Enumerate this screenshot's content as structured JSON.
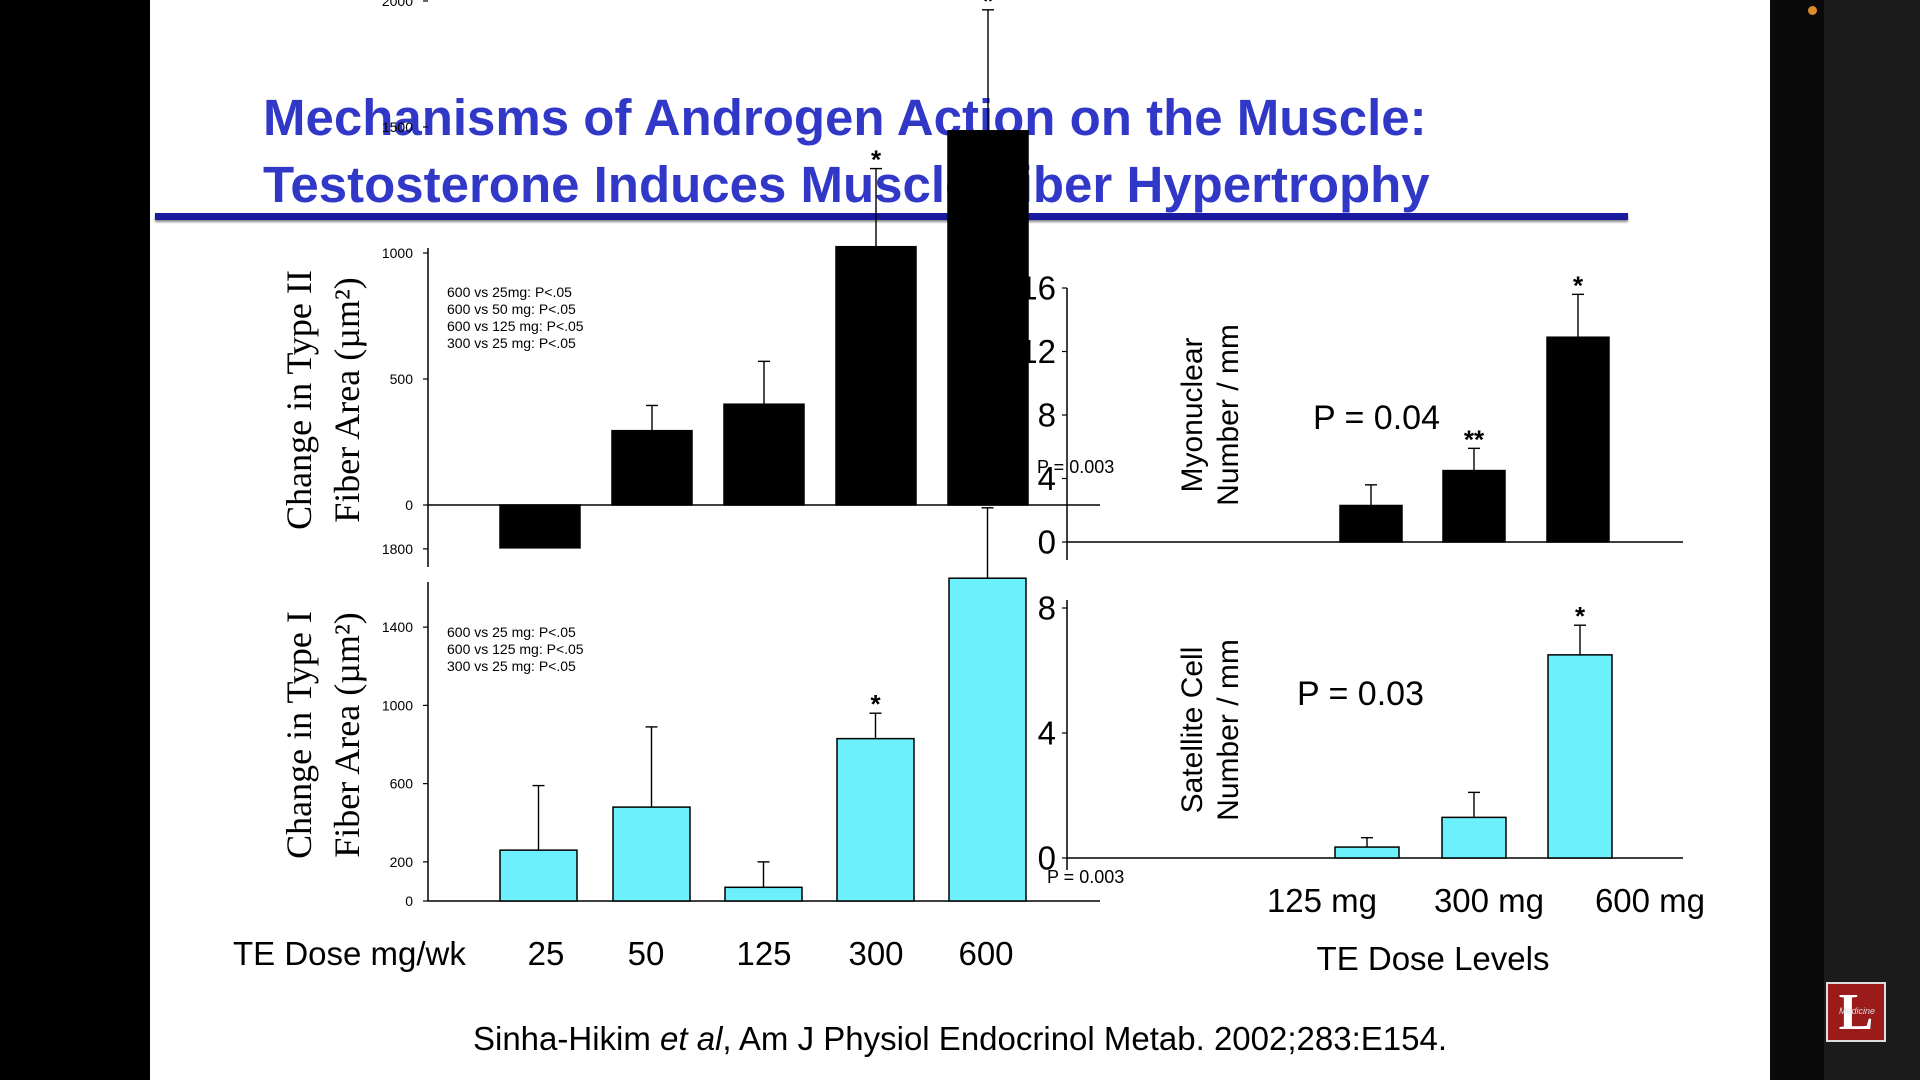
{
  "slide": {
    "title_line1": "Mechanisms of Androgen Action on the Muscle:",
    "title_line2": "Testosterone Induces Muscle Fiber Hypertrophy",
    "citation_author": "Sinha-Hikim ",
    "citation_etal": "et al",
    "citation_rest": ", Am J Physiol Endocrinol Metab. 2002;283:E154.",
    "dose_axis_label": "TE Dose mg/wk",
    "logo_letter": "L",
    "logo_text": "Medicine"
  },
  "colors": {
    "title": "#3138c8",
    "black_bars": "#000000",
    "cyan_bars": "#6cf0fc",
    "rule": "#1a1aa0"
  },
  "chart_data": [
    {
      "id": "type2",
      "type": "bar",
      "ylabel_line1": "Change in Type II",
      "ylabel_line2": "Fiber Area (µm²)",
      "categories": [
        "25",
        "50",
        "125",
        "300",
        "600"
      ],
      "values": [
        -170,
        295,
        400,
        1025,
        1485
      ],
      "errors": [
        0,
        100,
        170,
        310,
        480
      ],
      "stars": [
        "",
        "",
        "",
        "*",
        "*"
      ],
      "yticks": [
        "2000",
        "1500",
        "1000",
        "500",
        "0"
      ],
      "ylim": [
        -500,
        2000
      ],
      "annotations": [
        "600 vs 25mg: P<.05",
        "600 vs 50 mg: P<.05",
        "600 vs 125 mg: P<.05",
        "300 vs 25 mg: P<.05"
      ],
      "p_value": "P = 0.003",
      "bar_color": "#000000"
    },
    {
      "id": "type1",
      "type": "bar",
      "ylabel_line1": "Change in Type I",
      "ylabel_line2": "Fiber Area (µm²)",
      "categories": [
        "25",
        "50",
        "125",
        "300",
        "600"
      ],
      "values": [
        260,
        480,
        70,
        830,
        1650
      ],
      "errors": [
        330,
        410,
        130,
        130,
        360
      ],
      "stars": [
        "",
        "",
        "",
        "*",
        "*"
      ],
      "yticks": [
        "1800",
        "1400",
        "1000",
        "600",
        "200",
        "0"
      ],
      "ylim": [
        0,
        2000
      ],
      "annotations": [
        "600 vs 25 mg: P<.05",
        "600 vs 125 mg: P<.05",
        "300 vs 25 mg: P<.05"
      ],
      "p_value": "P = 0.003",
      "bar_color": "#6cf0fc"
    },
    {
      "id": "myonuclear",
      "type": "bar",
      "ylabel_line1": "Myonuclear",
      "ylabel_line2": "Number / mm",
      "categories": [
        "125 mg",
        "300 mg",
        "600 mg"
      ],
      "values": [
        2.3,
        4.5,
        12.9
      ],
      "errors": [
        1.3,
        1.4,
        2.7
      ],
      "stars": [
        "",
        "**",
        "*"
      ],
      "yticks": [
        "16",
        "12",
        "8",
        "4",
        "0"
      ],
      "ylim": [
        0,
        16
      ],
      "p_value": "P = 0.04",
      "bar_color": "#000000"
    },
    {
      "id": "satellite",
      "type": "bar",
      "ylabel_line1": "Satellite Cell",
      "ylabel_line2": "Number / mm",
      "categories": [
        "125 mg",
        "300 mg",
        "600 mg"
      ],
      "values": [
        0.35,
        1.3,
        6.5
      ],
      "errors": [
        0.3,
        0.8,
        0.95
      ],
      "stars": [
        "",
        "",
        "*"
      ],
      "yticks": [
        "8",
        "4",
        "0"
      ],
      "ylim": [
        0,
        8
      ],
      "p_value": "P = 0.03",
      "xlabel": "TE Dose Levels",
      "bar_color": "#6cf0fc"
    }
  ]
}
